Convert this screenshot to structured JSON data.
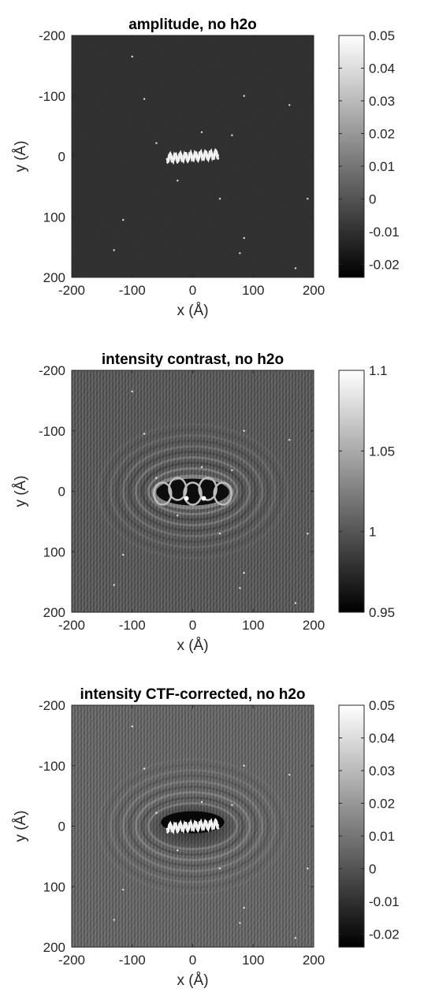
{
  "chart_data": [
    {
      "type": "heatmap",
      "title": "amplitude, no h2o",
      "xlabel": "x (Å)",
      "ylabel": "y (Å)",
      "xlim": [
        -200,
        200
      ],
      "ylim": [
        -200,
        200
      ],
      "y_direction": "reversed",
      "xticks": [
        "-200",
        "-100",
        "0",
        "100",
        "200"
      ],
      "yticks": [
        "-200",
        "-100",
        "0",
        "100",
        "200"
      ],
      "colormap": "gray",
      "clim": [
        -0.024,
        0.05
      ],
      "colorbar_ticks": [
        "0.05",
        "0.04",
        "0.03",
        "0.02",
        "0.01",
        "0",
        "-0.01",
        "-0.02"
      ],
      "colorbar_values": [
        0.05,
        0.04,
        0.03,
        0.02,
        0.01,
        0,
        -0.01,
        -0.02
      ],
      "background_level": -0.011,
      "feature": "bright helical molecule near x from -55 to 55, y about 0",
      "features": {
        "center": [
          0,
          0
        ],
        "length": 110,
        "pattern": "helix"
      }
    },
    {
      "type": "heatmap",
      "title": "intensity contrast, no h2o",
      "xlabel": "x (Å)",
      "ylabel": "y (Å)",
      "xlim": [
        -200,
        200
      ],
      "ylim": [
        -200,
        200
      ],
      "y_direction": "reversed",
      "xticks": [
        "-200",
        "-100",
        "0",
        "100",
        "200"
      ],
      "yticks": [
        "-200",
        "-100",
        "0",
        "100",
        "200"
      ],
      "colormap": "gray",
      "clim": [
        0.95,
        1.1
      ],
      "colorbar_ticks": [
        "1.1",
        "1.05",
        "1",
        "0.95"
      ],
      "colorbar_values": [
        1.1,
        1.05,
        1.0,
        0.95
      ],
      "background_level": 0.99,
      "feature": "dark lobed blob with fringe rings centered at origin",
      "features": {
        "center": [
          0,
          0
        ],
        "length": 110,
        "pattern": "lobes"
      }
    },
    {
      "type": "heatmap",
      "title": "intensity CTF-corrected, no h2o",
      "xlabel": "x (Å)",
      "ylabel": "y (Å)",
      "xlim": [
        -200,
        200
      ],
      "ylim": [
        -200,
        200
      ],
      "y_direction": "reversed",
      "xticks": [
        "-200",
        "-100",
        "0",
        "100",
        "200"
      ],
      "yticks": [
        "-200",
        "-100",
        "0",
        "100",
        "200"
      ],
      "colormap": "gray",
      "clim": [
        -0.024,
        0.05
      ],
      "colorbar_ticks": [
        "0.05",
        "0.04",
        "0.03",
        "0.02",
        "0.01",
        "0",
        "-0.01",
        "-0.02"
      ],
      "colorbar_values": [
        0.05,
        0.04,
        0.03,
        0.02,
        0.01,
        0,
        -0.01,
        -0.02
      ],
      "background_level": 0.0,
      "feature": "bright helix with dark halo and fringe rings centered at origin",
      "features": {
        "center": [
          0,
          0
        ],
        "length": 110,
        "pattern": "helix-rings"
      }
    }
  ]
}
